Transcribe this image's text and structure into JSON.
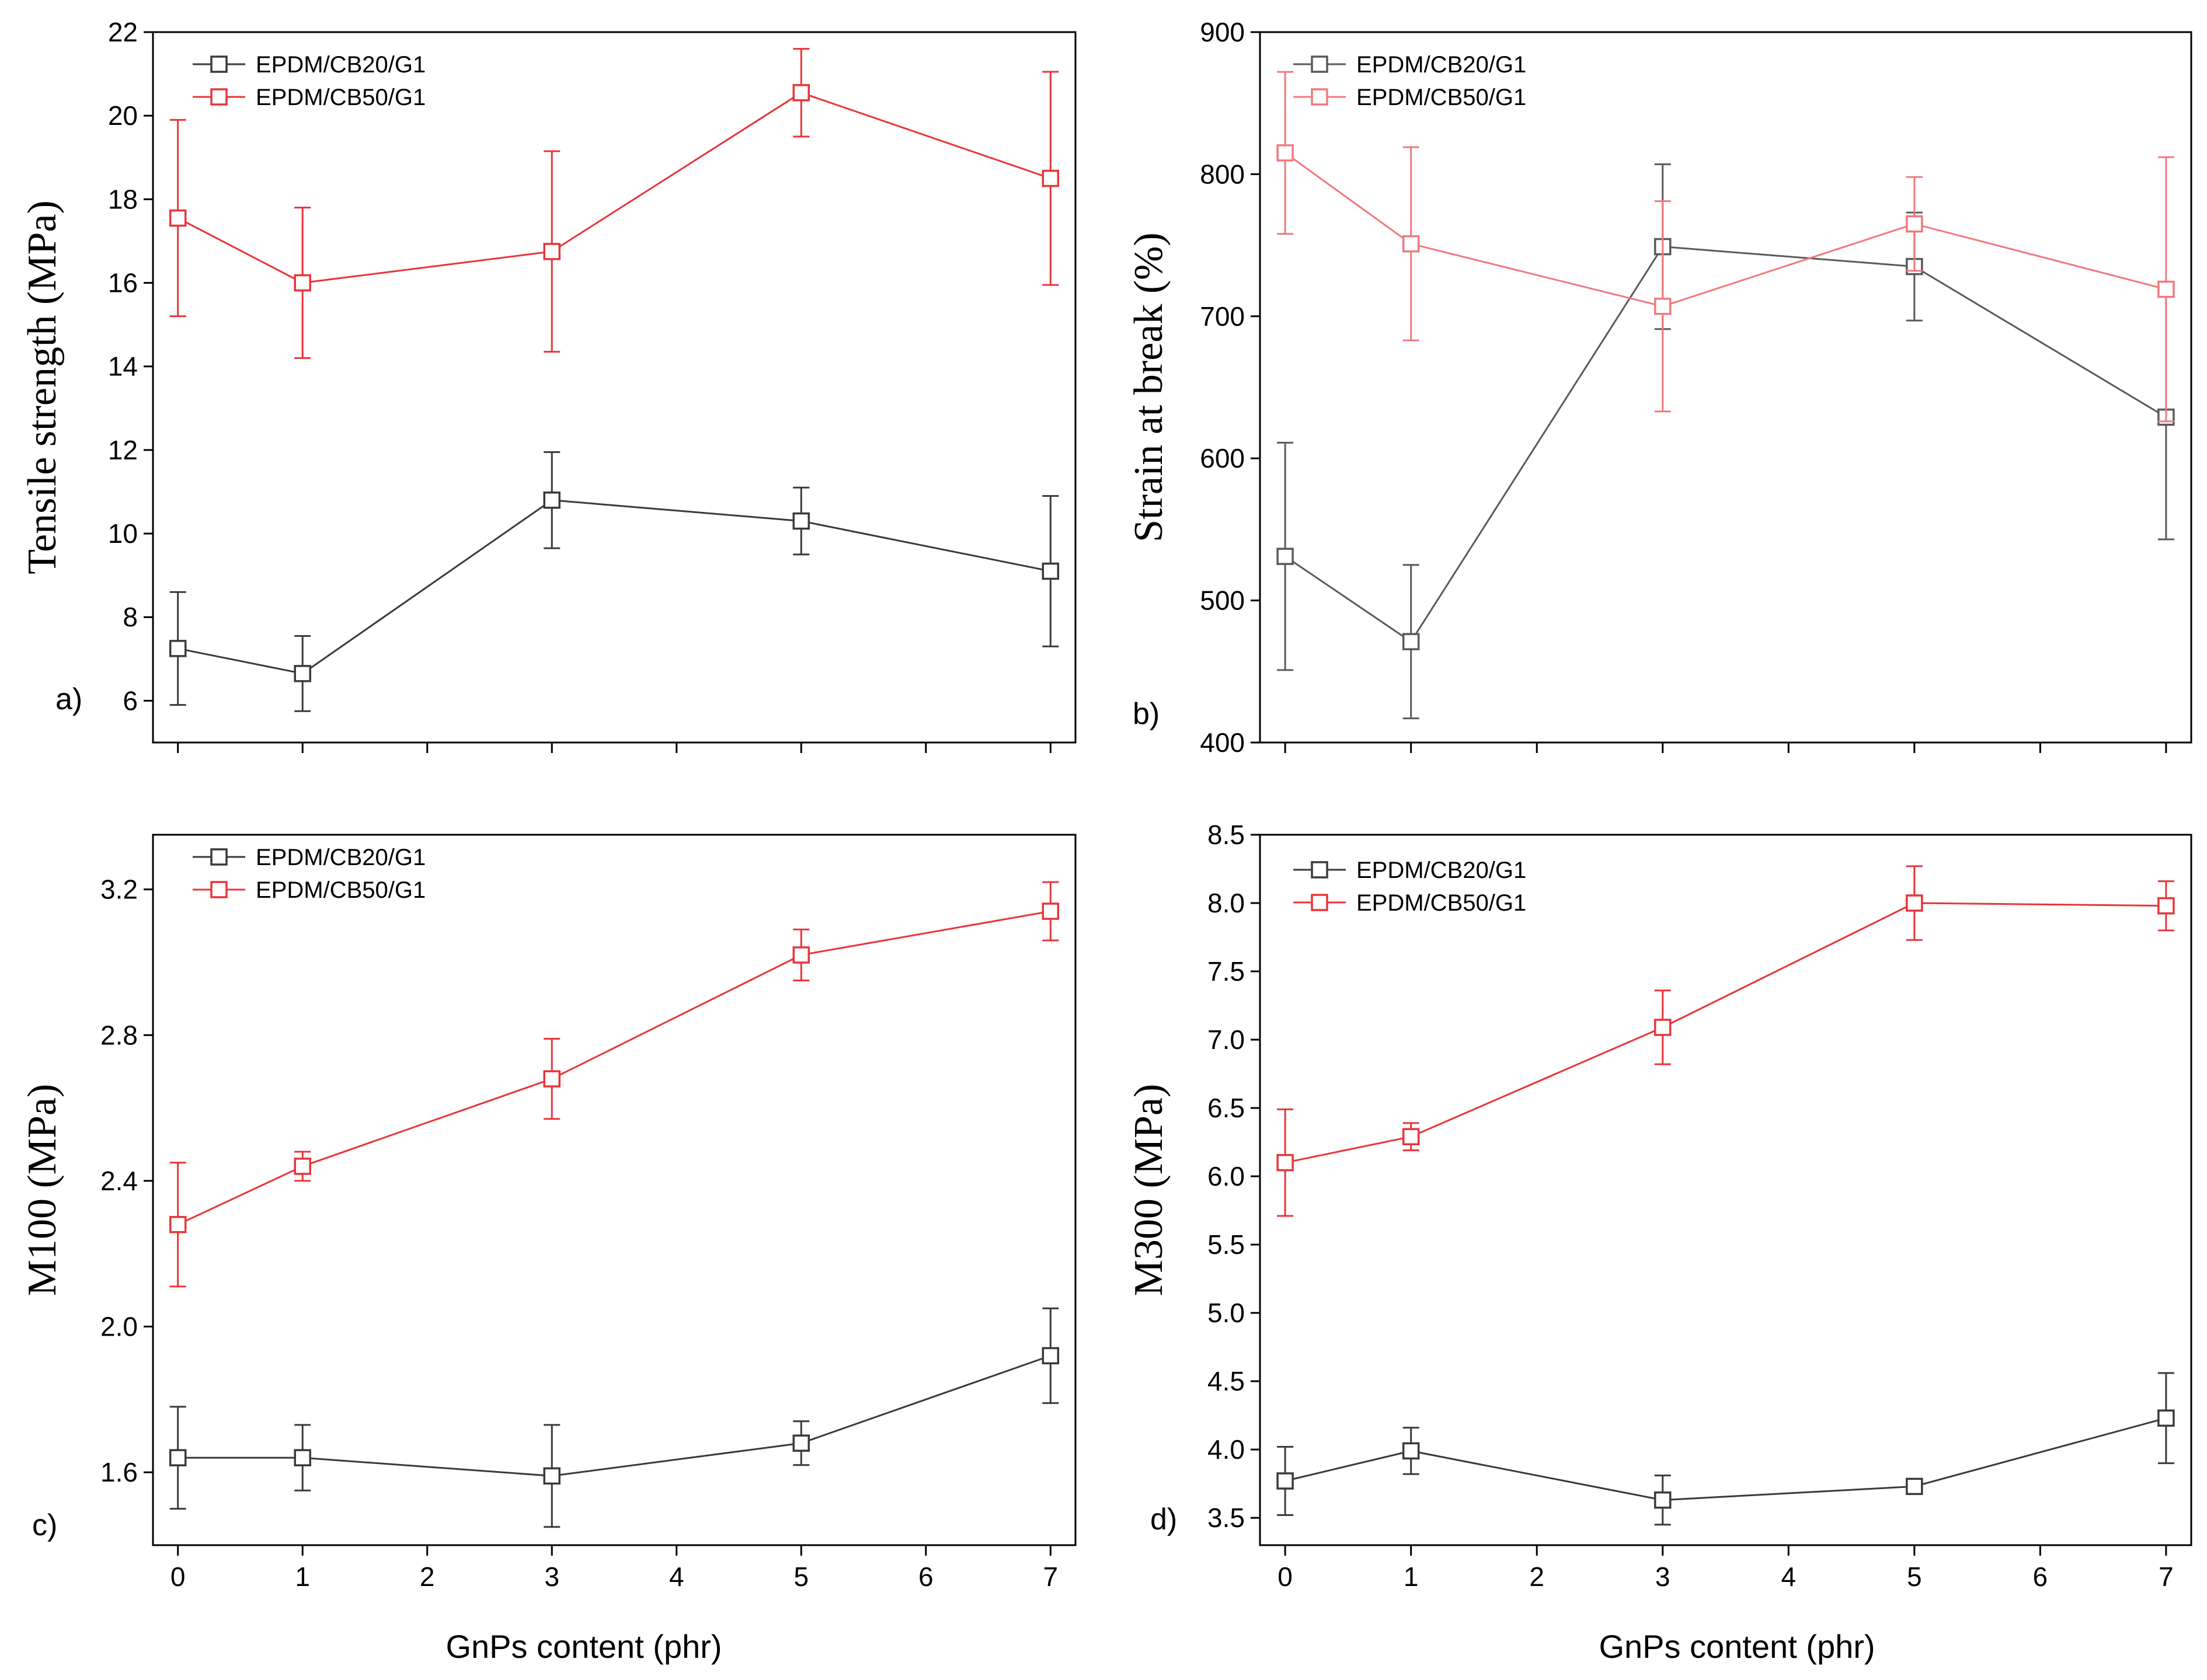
{
  "figure": {
    "xlabel_left": "GnPs content (phr)",
    "xlabel_right": "GnPs content (phr)"
  },
  "chart_data": [
    {
      "type": "line",
      "panel_label": "a)",
      "ylabel": "Tensile strength (MPa)",
      "xlabel": "GnPs content (phr)",
      "xlim": [
        -0.2,
        7.2
      ],
      "ylim": [
        5,
        22
      ],
      "xticks": [
        0,
        1,
        2,
        3,
        4,
        5,
        6,
        7
      ],
      "xtick_labels_shown": false,
      "yticks": [
        6,
        8,
        10,
        12,
        14,
        16,
        18,
        20,
        22
      ],
      "ytick_labels": [
        "6",
        "8",
        "10",
        "12",
        "14",
        "16",
        "18",
        "20",
        "22"
      ],
      "x": [
        0,
        1,
        3,
        5,
        7
      ],
      "series": [
        {
          "name": "EPDM/CB20/G1",
          "color": "#3a3a3a",
          "values": [
            7.25,
            6.65,
            10.8,
            10.3,
            9.1
          ],
          "errors": [
            1.35,
            0.9,
            1.15,
            0.8,
            1.8
          ]
        },
        {
          "name": "EPDM/CB50/G1",
          "color": "#e8353a",
          "values": [
            17.55,
            16.0,
            16.75,
            20.55,
            18.5
          ],
          "errors": [
            2.35,
            1.8,
            2.4,
            1.05,
            2.55
          ]
        }
      ]
    },
    {
      "type": "line",
      "panel_label": "b)",
      "ylabel": "Strain at break (%)",
      "xlabel": "GnPs content (phr)",
      "xlim": [
        -0.2,
        7.2
      ],
      "ylim": [
        400,
        900
      ],
      "xticks": [
        0,
        1,
        2,
        3,
        4,
        5,
        6,
        7
      ],
      "xtick_labels_shown": false,
      "yticks": [
        400,
        500,
        600,
        700,
        800,
        900
      ],
      "ytick_labels": [
        "400",
        "500",
        "600",
        "700",
        "800",
        "900"
      ],
      "x": [
        0,
        1,
        3,
        5,
        7
      ],
      "series": [
        {
          "name": "EPDM/CB20/G1",
          "color": "#5a5a5a",
          "values": [
            531,
            471,
            749,
            735,
            629
          ],
          "errors": [
            80,
            54,
            58,
            38,
            86
          ]
        },
        {
          "name": "EPDM/CB50/G1",
          "color": "#f07a7d",
          "values": [
            815,
            751,
            707,
            765,
            719
          ],
          "errors": [
            57,
            68,
            74,
            33,
            93
          ]
        }
      ]
    },
    {
      "type": "line",
      "panel_label": "c)",
      "ylabel": "M100 (MPa)",
      "xlabel": "GnPs content (phr)",
      "xlim": [
        -0.2,
        7.2
      ],
      "ylim": [
        1.4,
        3.35
      ],
      "xticks": [
        0,
        1,
        2,
        3,
        4,
        5,
        6,
        7
      ],
      "xtick_labels_shown": true,
      "xtick_labels": [
        "0",
        "1",
        "2",
        "3",
        "4",
        "5",
        "6",
        "7"
      ],
      "yticks": [
        1.6,
        2.0,
        2.4,
        2.8,
        3.2
      ],
      "ytick_labels": [
        "1.6",
        "2.0",
        "2.4",
        "2.8",
        "3.2"
      ],
      "x": [
        0,
        1,
        3,
        5,
        7
      ],
      "series": [
        {
          "name": "EPDM/CB20/G1",
          "color": "#3a3a3a",
          "values": [
            1.64,
            1.64,
            1.59,
            1.68,
            1.92
          ],
          "errors": [
            0.14,
            0.09,
            0.14,
            0.06,
            0.13
          ]
        },
        {
          "name": "EPDM/CB50/G1",
          "color": "#e8353a",
          "values": [
            2.28,
            2.44,
            2.68,
            3.02,
            3.14
          ],
          "errors": [
            0.17,
            0.04,
            0.11,
            0.07,
            0.08
          ]
        }
      ]
    },
    {
      "type": "line",
      "panel_label": "d)",
      "ylabel": "M300 (MPa)",
      "xlabel": "GnPs content (phr)",
      "xlim": [
        -0.2,
        7.2
      ],
      "ylim": [
        3.3,
        8.5
      ],
      "xticks": [
        0,
        1,
        2,
        3,
        4,
        5,
        6,
        7
      ],
      "xtick_labels_shown": true,
      "xtick_labels": [
        "0",
        "1",
        "2",
        "3",
        "4",
        "5",
        "6",
        "7"
      ],
      "yticks": [
        3.5,
        4.0,
        4.5,
        5.0,
        5.5,
        6.0,
        6.5,
        7.0,
        7.5,
        8.0,
        8.5
      ],
      "ytick_labels": [
        "3.5",
        "4.0",
        "4.5",
        "5.0",
        "5.5",
        "6.0",
        "6.5",
        "7.0",
        "7.5",
        "8.0",
        "8.5"
      ],
      "x": [
        0,
        1,
        3,
        5,
        7
      ],
      "series": [
        {
          "name": "EPDM/CB20/G1",
          "color": "#3a3a3a",
          "values": [
            3.77,
            3.99,
            3.63,
            3.73,
            4.23
          ],
          "errors": [
            0.25,
            0.17,
            0.18,
            0.04,
            0.33
          ]
        },
        {
          "name": "EPDM/CB50/G1",
          "color": "#e8353a",
          "values": [
            6.1,
            6.29,
            7.09,
            8.0,
            7.98
          ],
          "errors": [
            0.39,
            0.1,
            0.27,
            0.27,
            0.18
          ]
        }
      ]
    }
  ]
}
